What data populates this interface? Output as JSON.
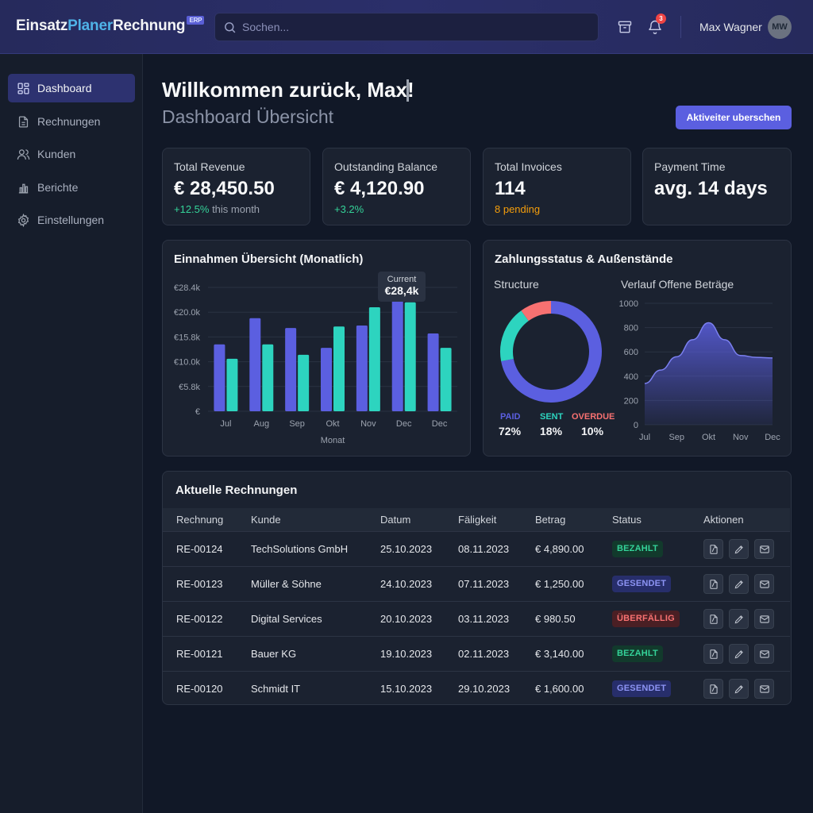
{
  "header": {
    "logo_part1": "Einsatz",
    "logo_part2": "Planer",
    "logo_part3": "Rechnung",
    "logo_badge": "ERP",
    "search_placeholder": "Sochen...",
    "notification_count": "3",
    "username": "Max Wagner",
    "avatar_initials": "MW"
  },
  "sidebar": {
    "items": [
      {
        "label": "Dashboard",
        "icon": "dashboard-icon",
        "active": true
      },
      {
        "label": "Rechnungen",
        "icon": "document-icon"
      },
      {
        "label": "Kunden",
        "icon": "users-icon"
      },
      {
        "label": "Berichte",
        "icon": "bar-chart-icon"
      },
      {
        "label": "Einstellungen",
        "icon": "gear-icon"
      }
    ]
  },
  "main": {
    "welcome": "Willkommen zurück, Max!",
    "subtitle": "Dashboard Übersicht",
    "primary_button": "Aktiveiter uberschen"
  },
  "stats": [
    {
      "label": "Total Revenue",
      "value": "€ 28,450.50",
      "sub_highlight": "+12.5%",
      "sub_rest": " this month"
    },
    {
      "label": "Outstanding Balance",
      "value": "€ 4,120.90",
      "sub_highlight": "+3.2%",
      "sub_rest": ""
    },
    {
      "label": "Total Invoices",
      "value": "114",
      "sub_highlight": "8 pending",
      "sub_rest": ""
    },
    {
      "label": "Payment Time",
      "value": "avg. 14 days",
      "sub_highlight": "",
      "sub_rest": ""
    }
  ],
  "revenue_card": {
    "title": "Einnahmen Übersicht (Monatlich)",
    "tooltip_label": "Current",
    "tooltip_value": "€28,4k"
  },
  "status_card": {
    "title": "Zahlungsstatus & Außenstände",
    "donut_title": "Structure",
    "area_title": "Verlauf Offene Beträge",
    "legend": [
      {
        "label": "PAID",
        "value": "72%",
        "color": "#5b5fe0"
      },
      {
        "label": "SENT",
        "value": "18%",
        "color": "#2dd4bf"
      },
      {
        "label": "OVERDUE",
        "value": "10%",
        "color": "#f87171"
      }
    ]
  },
  "chart_data": [
    {
      "type": "bar",
      "title": "Einnahmen Übersicht (Monatlich)",
      "xlabel": "Monat",
      "ylabel": "",
      "categories": [
        "Jul",
        "Aug",
        "Sep",
        "Okt",
        "Nov",
        "Dec",
        "Dec"
      ],
      "series": [
        {
          "color": "#5b5fe0",
          "values": [
            13.5,
            18.8,
            16.8,
            12.8,
            17.3,
            22.6,
            15.7
          ]
        },
        {
          "color": "#2dd4bf",
          "values": [
            10.6,
            13.5,
            11.4,
            17.1,
            21.0,
            22.0,
            12.8
          ]
        }
      ],
      "ytick_labels": [
        "€",
        "€5.8k",
        "€10.0k",
        "€15.8k",
        "€20.0k",
        "€28.4k"
      ],
      "ylim": [
        0,
        25
      ],
      "grid": true
    },
    {
      "type": "pie",
      "title": "Structure",
      "labels": [
        "PAID",
        "SENT",
        "OVERDUE"
      ],
      "values": [
        72,
        18,
        10
      ],
      "colors": [
        "#5b5fe0",
        "#2dd4bf",
        "#f87171"
      ]
    },
    {
      "type": "area",
      "title": "Verlauf Offene Beträge",
      "categories": [
        "Jul",
        "Sep",
        "Okt",
        "Nov",
        "Dec"
      ],
      "x": [
        0,
        0.5,
        1.0,
        1.5,
        2.0,
        2.5,
        3.0,
        3.5,
        4.0
      ],
      "y": [
        340,
        450,
        560,
        700,
        840,
        700,
        570,
        555,
        550
      ],
      "ylim": [
        0,
        1000
      ],
      "yticks": [
        0,
        200,
        400,
        600,
        800,
        1000
      ],
      "grid": true
    }
  ],
  "table": {
    "title": "Aktuelle Rechnungen",
    "headers": [
      "Rechnung",
      "Kunde",
      "Datum",
      "Fäligkeit",
      "Betrag",
      "Status",
      "Aktionen"
    ],
    "rows": [
      {
        "id": "RE-00124",
        "kunde": "TechSolutions GmbH",
        "datum": "25.10.2023",
        "faellig": "08.11.2023",
        "betrag": "€ 4,890.00",
        "status": "BEZAHLT",
        "status_type": "paid"
      },
      {
        "id": "RE-00123",
        "kunde": "Müller & Söhne",
        "datum": "24.10.2023",
        "faellig": "07.11.2023",
        "betrag": "€ 1,250.00",
        "status": "GESENDET",
        "status_type": "sent"
      },
      {
        "id": "RE-00122",
        "kunde": "Digital Services",
        "datum": "20.10.2023",
        "faellig": "03.11.2023",
        "betrag": "€ 980.50",
        "status": "ÜBERFÄLLIG",
        "status_type": "overdue"
      },
      {
        "id": "RE-00121",
        "kunde": "Bauer KG",
        "datum": "19.10.2023",
        "faellig": "02.11.2023",
        "betrag": "€ 3,140.00",
        "status": "BEZAHLT",
        "status_type": "paid"
      },
      {
        "id": "RE-00120",
        "kunde": "Schmidt IT",
        "datum": "15.10.2023",
        "faellig": "29.10.2023",
        "betrag": "€ 1,600.00",
        "status": "GESENDET",
        "status_type": "sent"
      }
    ]
  }
}
